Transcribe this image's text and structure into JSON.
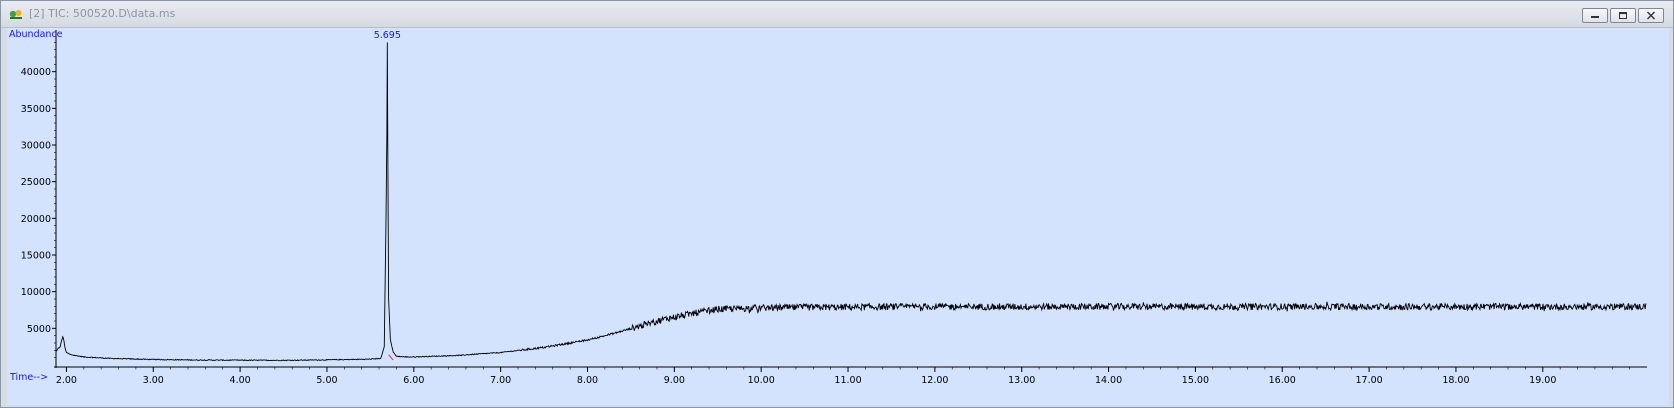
{
  "window": {
    "title": "[2] TIC: 500520.D\\data.ms",
    "icon": "chromatogram-app-icon",
    "buttons": {
      "minimize": "minimize-icon",
      "restore": "restore-icon",
      "close": "close-icon"
    }
  },
  "colors": {
    "plot_background": "#d3e3fd",
    "trace": "#000000",
    "label_blue": "#1a1ad9",
    "baseline_mark": "#e03050"
  },
  "chart_data": {
    "type": "line",
    "ylabel": "Abundance",
    "xlabel": "Time-->",
    "xlim": [
      1.88,
      20.2
    ],
    "ylim": [
      0,
      45000
    ],
    "xticks": [
      "2.00",
      "3.00",
      "4.00",
      "5.00",
      "6.00",
      "7.00",
      "8.00",
      "9.00",
      "10.00",
      "11.00",
      "12.00",
      "13.00",
      "14.00",
      "15.00",
      "16.00",
      "17.00",
      "18.00",
      "19.00"
    ],
    "yticks": [
      "5000",
      "10000",
      "15000",
      "20000",
      "25000",
      "30000",
      "35000",
      "40000"
    ],
    "peak_labels": [
      {
        "x": 5.695,
        "label": "5.695"
      }
    ],
    "series": [
      {
        "x": [
          1.88,
          1.93,
          1.96,
          1.98,
          2.0,
          2.05,
          2.2,
          2.5,
          3.0,
          3.5,
          4.0,
          4.5,
          5.0,
          5.5,
          5.62,
          5.66,
          5.68,
          5.69,
          5.695,
          5.7,
          5.71,
          5.73,
          5.76,
          5.8,
          5.9,
          6.0,
          6.5,
          7.0,
          7.5,
          8.0,
          8.3,
          8.6,
          8.9,
          9.2,
          9.5,
          10.0,
          11.0,
          12.0,
          13.0,
          14.0,
          15.0,
          16.0,
          17.0,
          18.0,
          19.0,
          19.8,
          20.2
        ],
        "y": [
          1800,
          2600,
          4000,
          2600,
          1700,
          1400,
          1100,
          900,
          750,
          680,
          650,
          640,
          700,
          800,
          900,
          2500,
          20000,
          31500,
          44000,
          31000,
          9000,
          3500,
          1800,
          1200,
          1100,
          1100,
          1300,
          1700,
          2400,
          3400,
          4300,
          5300,
          6300,
          7000,
          7600,
          7800,
          7900,
          7950,
          7950,
          7950,
          7950,
          7950,
          7950,
          7950,
          7950,
          7950,
          7950
        ]
      }
    ]
  }
}
